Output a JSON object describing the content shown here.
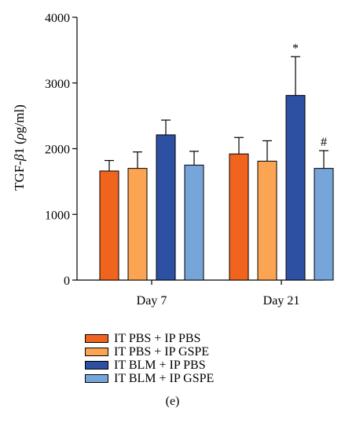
{
  "chart_data": {
    "type": "bar",
    "categories": [
      "Day 7",
      "Day 21"
    ],
    "series": [
      {
        "name": "IT PBS + IP PBS",
        "color": "#f0641e",
        "values": [
          1660,
          1920
        ],
        "errors": [
          160,
          250
        ]
      },
      {
        "name": "IT PBS + IP GSPE",
        "color": "#fba552",
        "values": [
          1700,
          1810
        ],
        "errors": [
          250,
          310
        ]
      },
      {
        "name": "IT BLM + IP PBS",
        "color": "#2e50a3",
        "values": [
          2210,
          2810
        ],
        "errors": [
          225,
          590
        ]
      },
      {
        "name": "IT BLM + IP GSPE",
        "color": "#76a5d9",
        "values": [
          1750,
          1700
        ],
        "errors": [
          210,
          270
        ]
      }
    ],
    "annotations": [
      {
        "category": "Day 21",
        "series": "IT BLM + IP PBS",
        "text": "*"
      },
      {
        "category": "Day 21",
        "series": "IT BLM + IP GSPE",
        "text": "#"
      }
    ],
    "ylabel": "TGF-β1 (ρg/ml)",
    "ylabel_parts": {
      "prefix": "TGF-",
      "beta": "β",
      "one": "1",
      "open": " (",
      "rho": "ρ",
      "unit": "g/ml)"
    },
    "ylim": [
      0,
      4000
    ],
    "yticks": [
      "0",
      "1000",
      "2000",
      "3000",
      "4000"
    ],
    "legend_position": "bottom",
    "grid": false
  },
  "panel_label": "(e)"
}
